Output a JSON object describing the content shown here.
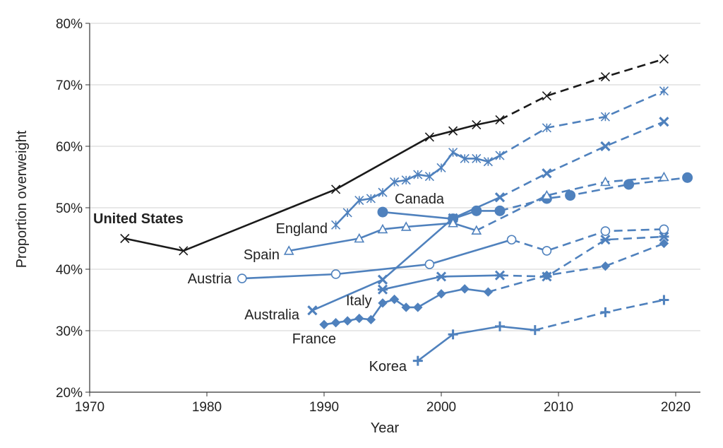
{
  "chart_data": {
    "type": "line",
    "title": "",
    "xlabel": "Year",
    "ylabel": "Proportion overweight",
    "xlim": [
      1970,
      2022
    ],
    "ylim": [
      20,
      80
    ],
    "x_ticks": [
      "1970",
      "1980",
      "1990",
      "2000",
      "2010",
      "2020"
    ],
    "y_ticks": [
      "20%",
      "30%",
      "40%",
      "50%",
      "60%",
      "70%",
      "80%"
    ],
    "grid": "horizontal",
    "colors": {
      "us": "#1a1a1a",
      "others": "#4f81bd",
      "grid": "#d0d0d0",
      "axis": "#333333"
    },
    "series": [
      {
        "name": "United States",
        "marker": "x",
        "color": "#1a1a1a",
        "x": [
          1973,
          1978,
          1991,
          1999,
          2001,
          2003,
          2005
        ],
        "y": [
          45,
          43,
          53,
          61.5,
          62.5,
          63.5,
          64.3
        ],
        "proj_x": [
          2005,
          2009,
          2014,
          2019
        ],
        "proj_y": [
          64.3,
          68.2,
          71.3,
          74.2
        ]
      },
      {
        "name": "England",
        "marker": "asterisk",
        "color": "#4f81bd",
        "x": [
          1991,
          1992,
          1993,
          1994,
          1995,
          1996,
          1997,
          1998,
          1999,
          2000,
          2001,
          2002,
          2003,
          2004,
          2005
        ],
        "y": [
          47.2,
          49.2,
          51.2,
          51.5,
          52.5,
          54.2,
          54.5,
          55.4,
          55.1,
          56.5,
          59,
          58,
          58,
          57.5,
          58.5
        ],
        "proj_x": [
          2005,
          2009,
          2014,
          2019
        ],
        "proj_y": [
          58.5,
          63,
          64.8,
          69
        ]
      },
      {
        "name": "Canada",
        "marker": "filled-circle",
        "color": "#4f81bd",
        "x": [
          1995,
          2001,
          2003,
          2005
        ],
        "y": [
          49.3,
          48.2,
          49.5,
          49.5
        ],
        "proj_x": [
          2005,
          2009,
          2011,
          2016,
          2021
        ],
        "proj_y": [
          49.5,
          51.5,
          52,
          53.8,
          54.9
        ]
      },
      {
        "name": "Spain",
        "marker": "triangle",
        "color": "#4f81bd",
        "x": [
          1987,
          1993,
          1995,
          1997,
          2001,
          2003
        ],
        "y": [
          43,
          45,
          46.5,
          46.9,
          47.5,
          46.3
        ],
        "proj_x": [
          2003,
          2009,
          2014,
          2019
        ],
        "proj_y": [
          46.3,
          52,
          54.2,
          55
        ]
      },
      {
        "name": "Austria",
        "marker": "open-circle",
        "color": "#4f81bd",
        "x": [
          1983,
          1991,
          1999,
          2006
        ],
        "y": [
          38.5,
          39.2,
          40.8,
          44.8
        ],
        "proj_x": [
          2006,
          2009,
          2014,
          2019
        ],
        "proj_y": [
          44.8,
          43,
          46.2,
          46.5
        ]
      },
      {
        "name": "Australia",
        "marker": "x-thick",
        "color": "#4f81bd",
        "x": [
          1989,
          1995,
          2001,
          2005
        ],
        "y": [
          33.3,
          38.3,
          48.3,
          51.7
        ],
        "proj_x": [
          2005,
          2009,
          2014,
          2019
        ],
        "proj_y": [
          51.7,
          55.6,
          60,
          64
        ]
      },
      {
        "name": "Italy",
        "marker": "asterisk-thick",
        "color": "#4f81bd",
        "x": [
          1995,
          2000,
          2005
        ],
        "y": [
          36.7,
          38.8,
          39
        ],
        "proj_x": [
          2005,
          2009,
          2014,
          2019
        ],
        "proj_y": [
          39,
          38.8,
          44.8,
          45.3
        ]
      },
      {
        "name": "France",
        "marker": "diamond",
        "color": "#4f81bd",
        "x": [
          1990,
          1991,
          1992,
          1993,
          1994,
          1995,
          1996,
          1997,
          1998,
          2000,
          2002,
          2004
        ],
        "y": [
          31,
          31.3,
          31.6,
          32,
          31.8,
          34.5,
          35.1,
          33.8,
          33.8,
          36,
          36.8,
          36.3
        ],
        "proj_x": [
          2004,
          2009,
          2014,
          2019
        ],
        "proj_y": [
          36.3,
          39,
          40.5,
          44.2
        ]
      },
      {
        "name": "Korea",
        "marker": "plus",
        "color": "#4f81bd",
        "x": [
          1998,
          2001,
          2005,
          2008
        ],
        "y": [
          25.1,
          29.4,
          30.7,
          30.1
        ],
        "proj_x": [
          2008,
          2014,
          2019
        ],
        "proj_y": [
          30.1,
          33,
          35
        ]
      }
    ]
  }
}
